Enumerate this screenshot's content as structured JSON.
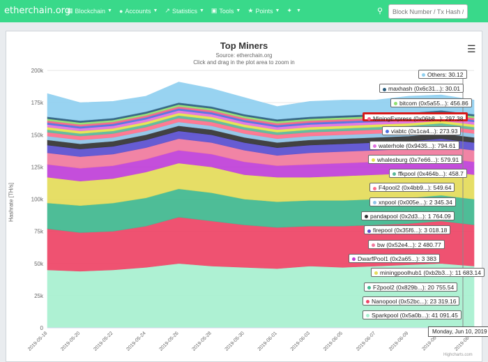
{
  "nav": {
    "brand": "etherchain.org",
    "items": [
      {
        "label": "Blockchain",
        "icon": "blocks-icon"
      },
      {
        "label": "Accounts",
        "icon": "user-icon"
      },
      {
        "label": "Statistics",
        "icon": "chart-icon"
      },
      {
        "label": "Tools",
        "icon": "calculator-icon"
      },
      {
        "label": "Points",
        "icon": "star-icon"
      },
      {
        "label": "",
        "icon": "twitter-icon"
      }
    ],
    "search_placeholder": "Block Number / Tx Hash / Address"
  },
  "chart_data": {
    "type": "area",
    "stacked": true,
    "title": "Top Miners",
    "subtitle": "Source: etherchain.org",
    "hint": "Click and drag in the plot area to zoom in",
    "ylabel": "Hashrate [TH/s]",
    "ylim": [
      0,
      200000
    ],
    "yticks": [
      "0",
      "25k",
      "50k",
      "75k",
      "100k",
      "125k",
      "150k",
      "175k",
      "200k"
    ],
    "x": [
      "2019-05-18",
      "2019-05-20",
      "2019-05-22",
      "2019-05-24",
      "2019-05-26",
      "2019-05-28",
      "2019-05-30",
      "2019-06-01",
      "2019-06-03",
      "2019-06-05",
      "2019-06-07",
      "2019-06-09",
      "2019-06-11",
      "2019-06-13"
    ],
    "series": [
      {
        "name": "Sparkpool (0x5a0b...): 41 091.45",
        "color": "#a8f0d0",
        "values": [
          45000,
          44000,
          45000,
          47000,
          50000,
          48000,
          47000,
          46000,
          48000,
          47000,
          48000,
          49000,
          50000,
          48000
        ]
      },
      {
        "name": "Nanopool (0x52bc...): 23 319.16",
        "color": "#ee4466",
        "values": [
          32000,
          30000,
          30000,
          32000,
          36000,
          35000,
          33000,
          32000,
          31000,
          32000,
          32000,
          32000,
          33000,
          32000
        ]
      },
      {
        "name": "F2pool2 (0x829b...): 20 755.54",
        "color": "#3fb88f",
        "values": [
          20000,
          21000,
          22000,
          22000,
          22000,
          22000,
          20000,
          20000,
          20000,
          20000,
          20000,
          20000,
          20000,
          20000
        ]
      },
      {
        "name": "miningpoolhub1 (0xb2b3...): 11 683.14",
        "color": "#e4dc5a",
        "values": [
          20000,
          19000,
          19000,
          20000,
          20000,
          20000,
          19000,
          19000,
          18000,
          19000,
          19000,
          19000,
          19000,
          19000
        ]
      },
      {
        "name": "DwarfPool1 (0x2a65...): 3 383",
        "color": "#c040d8",
        "values": [
          10000,
          10000,
          10000,
          10000,
          10000,
          10000,
          10000,
          9000,
          10000,
          10000,
          10000,
          10000,
          10000,
          10000
        ]
      },
      {
        "name": "bw (0x52e4...): 2 480.77",
        "color": "#f07a9e",
        "values": [
          9000,
          9000,
          9000,
          9000,
          9000,
          9000,
          9000,
          8000,
          9000,
          9000,
          9000,
          9000,
          9000,
          9000
        ]
      },
      {
        "name": "firepool (0x35f6...): 3 018.18",
        "color": "#5a4fd0",
        "values": [
          6000,
          6000,
          6000,
          6000,
          6000,
          6000,
          6000,
          6000,
          6000,
          6000,
          6000,
          6000,
          6000,
          6000
        ]
      },
      {
        "name": "pandapool (0x2d3...): 1 764.09",
        "color": "#333333",
        "values": [
          4000,
          4000,
          4000,
          4000,
          4000,
          4000,
          4000,
          4000,
          4000,
          4000,
          4000,
          4000,
          4000,
          4000
        ]
      },
      {
        "name": "xnpool (0x005e...): 2 345.34",
        "color": "#8fc4e8",
        "values": [
          3000,
          3000,
          3000,
          3000,
          3000,
          3000,
          3000,
          3000,
          3000,
          3000,
          3000,
          3000,
          3000,
          3000
        ]
      },
      {
        "name": "F4pool2 (0x4bb9...): 549.64",
        "color": "#ff6f8a",
        "values": [
          3000,
          3000,
          3000,
          3000,
          3000,
          3000,
          3000,
          3000,
          3000,
          3000,
          3000,
          3000,
          3000,
          3000
        ]
      },
      {
        "name": "ffkpool (0x464b...): 458.7",
        "color": "#58b89a",
        "values": [
          2000,
          2000,
          2000,
          2000,
          2000,
          2000,
          2000,
          2000,
          2000,
          2000,
          2000,
          2000,
          2000,
          2000
        ]
      },
      {
        "name": "whalesburg (0x7e66...): 579.91",
        "color": "#e6e24a",
        "values": [
          2000,
          2000,
          2000,
          2000,
          2000,
          2000,
          2000,
          2000,
          2000,
          2000,
          2000,
          2000,
          2000,
          2000
        ]
      },
      {
        "name": "waterhole (0x9435...): 794.61",
        "color": "#e070e0",
        "values": [
          2000,
          2000,
          2000,
          2000,
          2000,
          2000,
          2000,
          2000,
          2000,
          2000,
          2000,
          2000,
          2000,
          2000
        ]
      },
      {
        "name": "viabtc (0x1ca4...): 273.93",
        "color": "#4f6fe0",
        "values": [
          1500,
          1500,
          1500,
          1500,
          1500,
          1500,
          1500,
          1500,
          1500,
          1500,
          1500,
          1500,
          1500,
          1500
        ]
      },
      {
        "name": "MiningExpress (0x06b8...): 297.38",
        "color": "#f46088",
        "values": [
          1500,
          1500,
          1500,
          1500,
          1500,
          1500,
          1500,
          1500,
          1500,
          1500,
          1500,
          1500,
          1500,
          1500
        ]
      },
      {
        "name": "bitcom (0x5a55...): 456.86",
        "color": "#90e070",
        "values": [
          1500,
          1500,
          1500,
          1500,
          1500,
          1500,
          1500,
          1500,
          1500,
          1500,
          1500,
          1500,
          1500,
          1500
        ]
      },
      {
        "name": "maxhash (0x6c31...): 30.01",
        "color": "#2a5d7e",
        "values": [
          1500,
          1500,
          1500,
          1500,
          1500,
          1500,
          1500,
          1500,
          1500,
          1500,
          1500,
          1500,
          1500,
          1500
        ]
      },
      {
        "name": "Others: 30.12",
        "color": "#90d0f0",
        "values": [
          18000,
          14000,
          13000,
          12000,
          16000,
          14000,
          13000,
          10000,
          12000,
          12000,
          11000,
          13000,
          12000,
          11000
        ]
      }
    ],
    "legend_placement": "right-overlay",
    "highlighted_series": "MiningExpress (0x06b8...): 297.38",
    "tooltip": "Monday, Jun 10, 2019",
    "credits": "Highcharts.com"
  }
}
